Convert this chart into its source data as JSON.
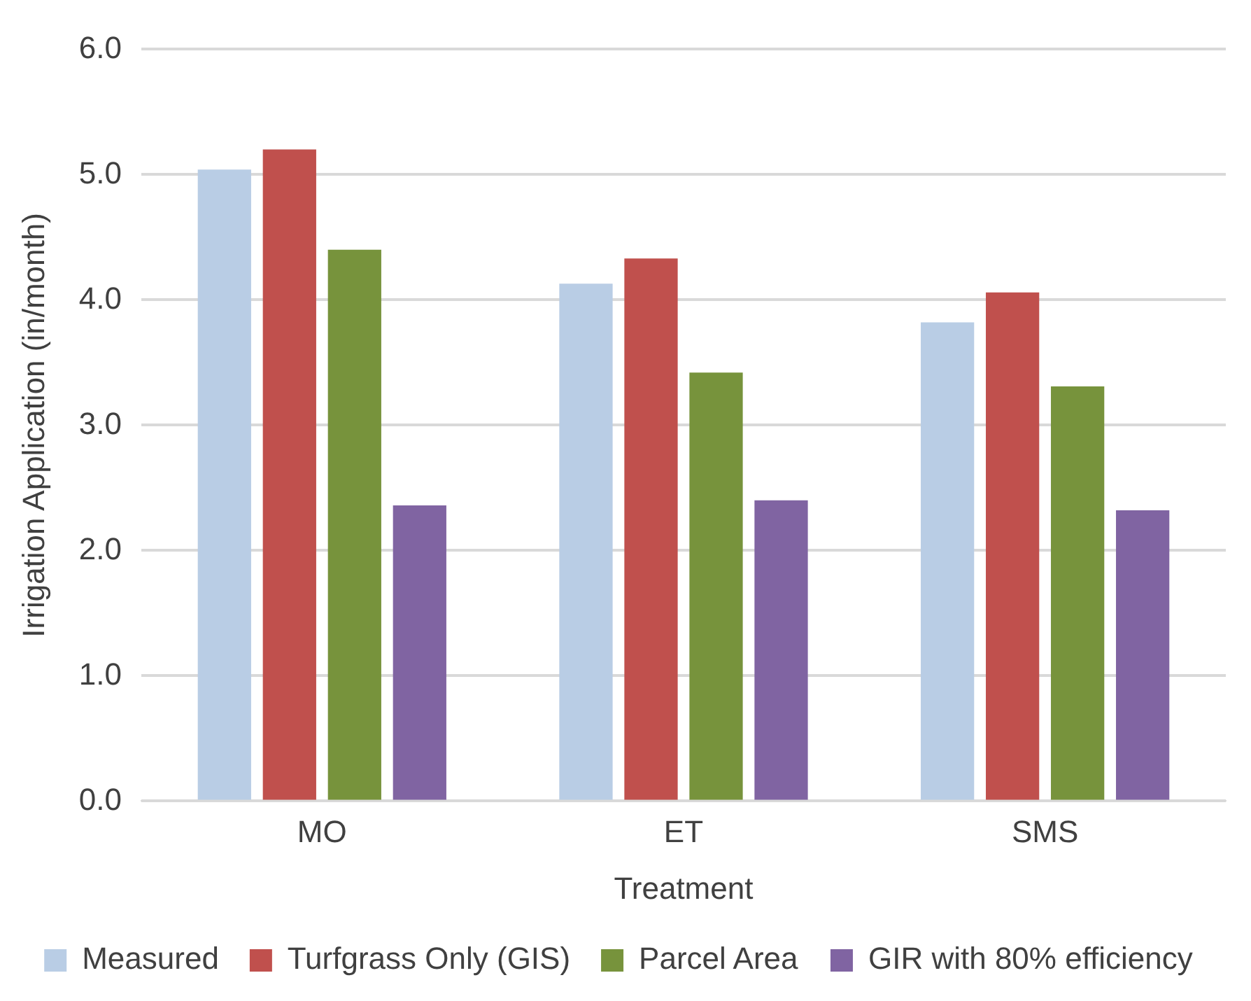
{
  "chart_data": {
    "type": "bar",
    "xlabel": "Treatment",
    "ylabel": "Irrigation Application (in/month)",
    "categories": [
      "MO",
      "ET",
      "SMS"
    ],
    "series": [
      {
        "name": "Measured",
        "color": "#b9cde5",
        "values": [
          5.04,
          4.13,
          3.82
        ]
      },
      {
        "name": "Turfgrass Only (GIS)",
        "color": "#c0504d",
        "values": [
          5.2,
          4.33,
          4.06
        ]
      },
      {
        "name": "Parcel Area",
        "color": "#77933c",
        "values": [
          4.4,
          3.42,
          3.31
        ]
      },
      {
        "name": "GIR with 80% efficiency",
        "color": "#8064a2",
        "values": [
          2.36,
          2.4,
          2.32
        ]
      }
    ],
    "ylim": [
      0,
      6
    ],
    "yticks": [
      {
        "value": 0,
        "label": "0.0"
      },
      {
        "value": 1,
        "label": "1.0"
      },
      {
        "value": 2,
        "label": "2.0"
      },
      {
        "value": 3,
        "label": "3.0"
      },
      {
        "value": 4,
        "label": "4.0"
      },
      {
        "value": 5,
        "label": "5.0"
      },
      {
        "value": 6,
        "label": "6.0"
      }
    ],
    "grid": "y",
    "legend": "bottom"
  }
}
